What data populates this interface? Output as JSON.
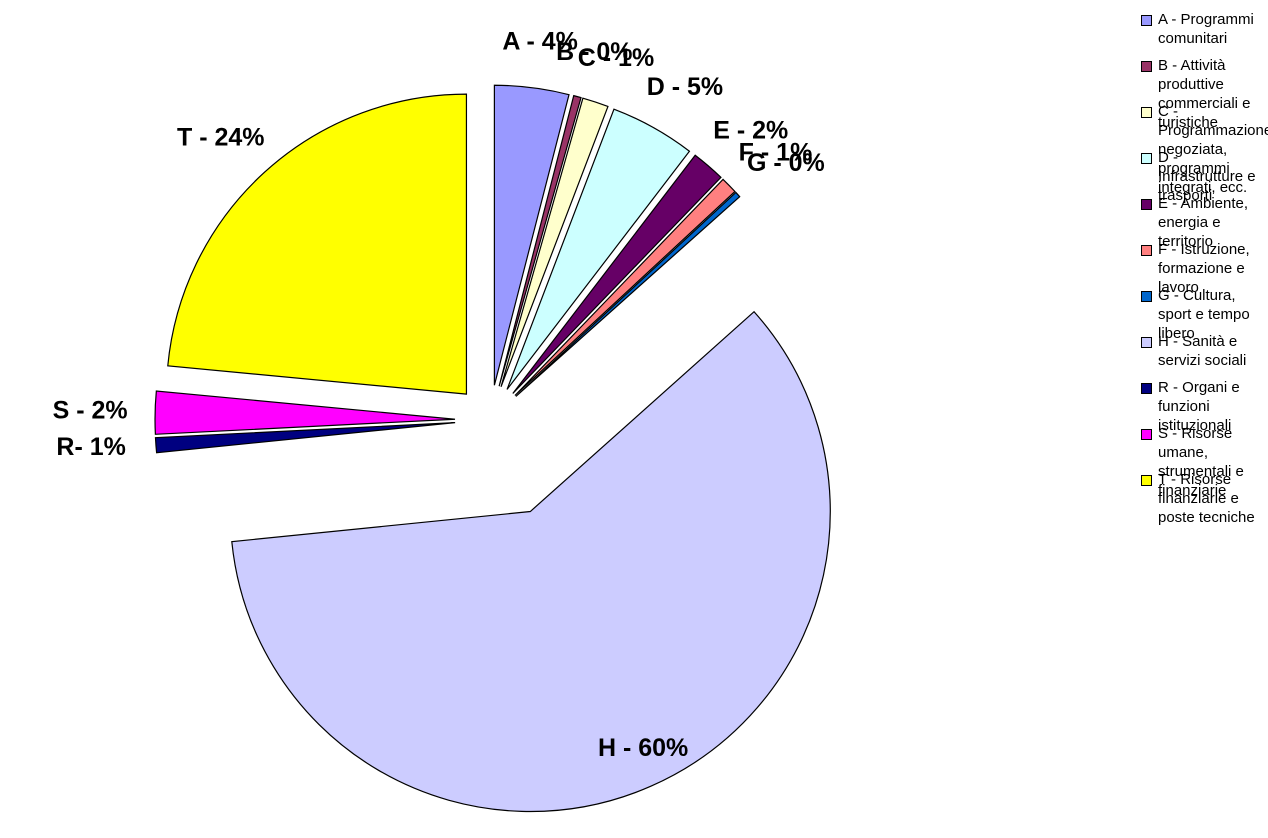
{
  "chart_data": {
    "type": "pie",
    "categories": [
      "A - Programmi comunitari",
      "B - Attività produttive commerciali e turistiche",
      "C - Programmazione negoziata, programmi integrati, ecc.",
      "D - Infrastrutture e trasporti",
      "E - Ambiente, energia e territorio",
      "F - Istruzione, formazione e lavoro",
      "G - Cultura, sport e tempo libero",
      "H - Sanità e servizi sociali",
      "R - Organi e funzioni istituzionali",
      "S - Risorse umane, strumentali e finanziarie",
      "T - Risorse finanziarie e poste tecniche"
    ],
    "values": [
      4,
      0.4,
      1.4,
      4.6,
      1.8,
      0.9,
      0.3,
      60,
      0.8,
      2.3,
      23.5
    ],
    "value_labels": [
      "A - 4%",
      "B - 0%",
      "C - 1%",
      "D - 5%",
      "E - 2%",
      "F - 1%",
      "G - 0%",
      "H - 60%",
      "R- 1%",
      "S - 2%",
      "T - 24%"
    ],
    "colors": [
      "#9999ff",
      "#993366",
      "#ffffcc",
      "#ccffff",
      "#660066",
      "#ff8080",
      "#0066cc",
      "#ccccff",
      "#000080",
      "#ff00ff",
      "#ffff00"
    ],
    "legend": "right"
  }
}
